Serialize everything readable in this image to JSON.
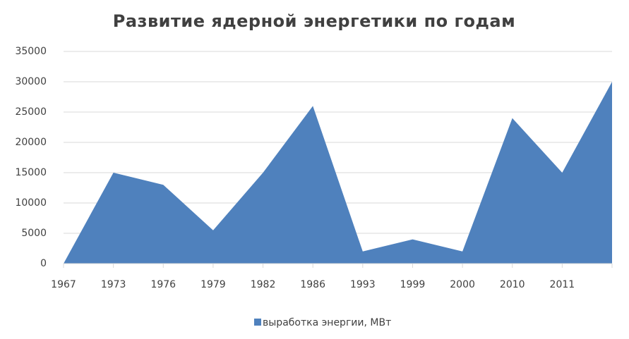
{
  "chart_data": {
    "type": "area",
    "title": "Развитие ядерной энергетики по годам",
    "categories": [
      "1967",
      "1973",
      "1976",
      "1979",
      "1982",
      "1986",
      "1993",
      "1999",
      "2000",
      "2010",
      "2011",
      null
    ],
    "series": [
      {
        "name": "выработка энергии, МВт",
        "color": "#4f81bd",
        "values": [
          0,
          15000,
          13000,
          5500,
          15000,
          26000,
          2000,
          4000,
          2000,
          24000,
          15000,
          30000
        ]
      }
    ],
    "ylim": [
      0,
      35000
    ],
    "yticks": [
      0,
      5000,
      10000,
      15000,
      20000,
      25000,
      30000,
      35000
    ],
    "grid": true,
    "legend": "bottom"
  }
}
